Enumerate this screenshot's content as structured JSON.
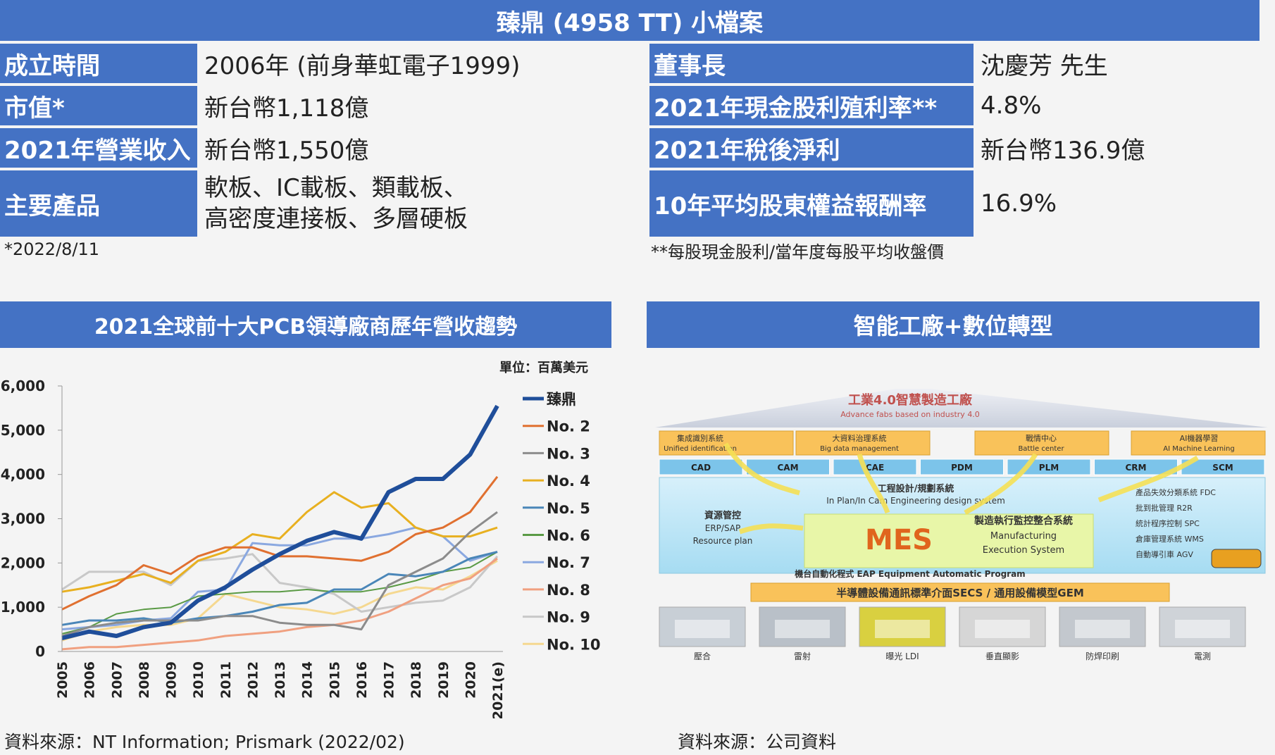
{
  "profile": {
    "title": "臻鼎 (4958 TT) 小檔案",
    "rows": [
      {
        "label": "成立時間",
        "value": "2006年 (前身華虹電子1999)",
        "label2": "董事長",
        "value2": "沈慶芳 先生"
      },
      {
        "label": "市值*",
        "value": "新台幣1,118億",
        "label2": "2021年現金股利殖利率**",
        "value2": "4.8%"
      },
      {
        "label": "2021年營業收入",
        "value": "新台幣1,550億",
        "label2": "2021年稅後淨利",
        "value2": "新台幣136.9億"
      },
      {
        "label": "主要產品",
        "value_line1": "軟板、IC載板、類載板、",
        "value_line2": "高密度連接板、多層硬板",
        "label2": "10年平均股東權益報酬率",
        "value2": "16.9%"
      }
    ],
    "note_left": "*2022/8/11",
    "note_right": "**每股現金股利/當年度每股平均收盤價"
  },
  "chart_panel": {
    "title": "2021全球前十大PCB領導廠商歷年營收趨勢",
    "unit": "單位：百萬美元",
    "source": "資料來源：NT Information; Prismark (2022/02)"
  },
  "factory_panel": {
    "title": "智能工廠+數位轉型",
    "roof_title": "工業4.0智慧製造工廠",
    "roof_subtitle": "Advance fabs based on industry 4.0",
    "top_boxes": [
      {
        "zh": "集成識別系統",
        "en": "Unified identification"
      },
      {
        "zh": "大資料治理系統",
        "en": "Big data management"
      },
      {
        "zh": "戰情中心",
        "en": "Battle center"
      },
      {
        "zh": "AI機器學習",
        "en": "AI Machine Learning"
      }
    ],
    "systems": [
      "CAD",
      "CAM",
      "CAE",
      "PDM",
      "PLM",
      "CRM",
      "SCM"
    ],
    "left_block": [
      "資源管控",
      "ERP/SAP",
      "Resource plan"
    ],
    "center_top": [
      "工程設計/規劃系統",
      "In Plan/In Cam Engineering design system"
    ],
    "mes": "MES",
    "mes_right": [
      "製造執行監控整合系統",
      "Manufacturing",
      "Execution System"
    ],
    "right_list": [
      "產品失效分類系統 FDC",
      "批到批管理 R2R",
      "統計程序控制 SPC",
      "倉庫管理系統 WMS",
      "自動導引車 AGV"
    ],
    "bottom_line": "機台自動化程式 EAP Equipment Automatic Program",
    "bar": "半導體設備通訊標準介面SECS / 通用設備模型GEM",
    "machines": [
      "壓合",
      "雷射",
      "曝光 LDI",
      "垂直顯影",
      "防焊印刷",
      "電測"
    ],
    "source": "資料來源：公司資料"
  },
  "chart_data": {
    "type": "line",
    "title": "2021全球前十大PCB領導廠商歷年營收趨勢",
    "categories": [
      "2005",
      "2006",
      "2007",
      "2008",
      "2009",
      "2010",
      "2011",
      "2012",
      "2013",
      "2014",
      "2015",
      "2016",
      "2017",
      "2018",
      "2019",
      "2020",
      "2021(e)"
    ],
    "ylim": [
      0,
      6000
    ],
    "yticks": [
      "0",
      "1,000",
      "2,000",
      "3,000",
      "4,000",
      "5,000",
      "6,000"
    ],
    "legend_position": "right",
    "series": [
      {
        "name": "臻鼎",
        "color": "#1f4e9a",
        "width": 6,
        "values": [
          300,
          450,
          350,
          550,
          650,
          1150,
          1450,
          1850,
          2200,
          2500,
          2700,
          2550,
          3600,
          3900,
          3900,
          4450,
          5550
        ]
      },
      {
        "name": "No. 2",
        "color": "#e07030",
        "width": 3,
        "values": [
          950,
          1250,
          1500,
          1950,
          1750,
          2150,
          2350,
          2350,
          2150,
          2150,
          2100,
          2050,
          2250,
          2650,
          2800,
          3150,
          3950
        ]
      },
      {
        "name": "No. 3",
        "color": "#8c8c8c",
        "width": 3,
        "values": [
          350,
          550,
          650,
          700,
          700,
          700,
          800,
          800,
          650,
          600,
          600,
          500,
          1500,
          1800,
          2100,
          2700,
          3150
        ]
      },
      {
        "name": "No. 4",
        "color": "#e8b020",
        "width": 3,
        "values": [
          1350,
          1450,
          1600,
          1750,
          1550,
          2050,
          2250,
          2650,
          2550,
          3150,
          3600,
          3250,
          3350,
          2800,
          2600,
          2600,
          2800
        ]
      },
      {
        "name": "No. 5",
        "color": "#4a86b8",
        "width": 3,
        "values": [
          600,
          700,
          700,
          750,
          650,
          750,
          800,
          900,
          1050,
          1100,
          1400,
          1400,
          1750,
          1700,
          1800,
          2100,
          2250
        ]
      },
      {
        "name": "No. 6",
        "color": "#5a9a45",
        "width": 2,
        "values": [
          400,
          550,
          850,
          950,
          1000,
          1250,
          1300,
          1350,
          1350,
          1400,
          1350,
          1350,
          1450,
          1600,
          1800,
          1900,
          2250
        ]
      },
      {
        "name": "No. 7",
        "color": "#8aa8e0",
        "width": 3,
        "values": [
          500,
          550,
          600,
          700,
          750,
          1350,
          1400,
          2450,
          2400,
          2400,
          2550,
          2550,
          2650,
          2800,
          2600,
          2050,
          2250
        ]
      },
      {
        "name": "No. 8",
        "color": "#f0a080",
        "width": 3,
        "values": [
          50,
          100,
          100,
          150,
          200,
          250,
          350,
          400,
          450,
          550,
          600,
          700,
          900,
          1200,
          1500,
          1650,
          2100
        ]
      },
      {
        "name": "No. 9",
        "color": "#c8c8c8",
        "width": 3,
        "values": [
          1400,
          1800,
          1800,
          1800,
          1500,
          2050,
          2100,
          2200,
          1550,
          1450,
          1300,
          900,
          1000,
          1100,
          1150,
          1450,
          2150
        ]
      },
      {
        "name": "No. 10",
        "color": "#f5d890",
        "width": 3,
        "values": [
          250,
          450,
          550,
          600,
          600,
          750,
          1300,
          1150,
          1000,
          950,
          850,
          1000,
          1300,
          1450,
          1400,
          1700,
          2050
        ]
      }
    ]
  }
}
